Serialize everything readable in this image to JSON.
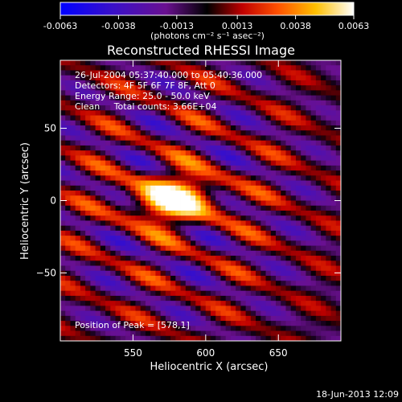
{
  "colorbar": {
    "tick_labels": [
      "-0.0063",
      "-0.0038",
      "-0.0013",
      "0.0013",
      "0.0038",
      "0.0063"
    ],
    "units_label": "(photons cm⁻² s⁻¹ asec⁻²)",
    "range": [
      -0.0063,
      0.0063
    ]
  },
  "chart_data": {
    "type": "heatmap",
    "title": "Reconstructed RHESSI Image",
    "xlabel": "Heliocentric X (arcsec)",
    "ylabel": "Heliocentric Y (arcsec)",
    "xlim": [
      500,
      693
    ],
    "ylim": [
      -97,
      97
    ],
    "x_ticks": [
      550,
      600,
      650
    ],
    "y_ticks": [
      50,
      0,
      -50
    ],
    "x_tick_labels": [
      "550",
      "600",
      "650"
    ],
    "y_tick_labels": [
      "50",
      "0",
      "−50"
    ],
    "peak": [
      578,
      1
    ],
    "annotations": [
      "26-Jul-2004 05:37:40.000 to 05:40:36.000",
      "Detectors: 4F 5F 6F 7F 8F, Att 0",
      "Energy Range: 25.0 - 50.0 keV",
      "Clean     Total counts: 3.66E+04"
    ],
    "peak_label": "Position of Peak = [578,1]"
  },
  "footer": {
    "timestamp": "18-Jun-2013 12:09"
  }
}
